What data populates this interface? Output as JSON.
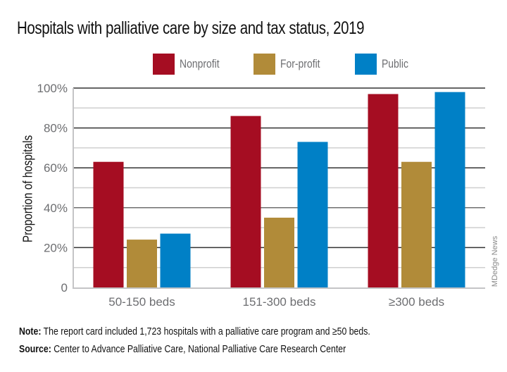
{
  "chart_data": {
    "type": "bar",
    "title": "Hospitals with palliative care by size and tax status, 2019",
    "xlabel": "",
    "ylabel": "Proportion of hospitals",
    "categories": [
      "50-150 beds",
      "151-300 beds",
      "≥300 beds"
    ],
    "series": [
      {
        "name": "Nonprofit",
        "color": "#a50d22",
        "values": [
          63,
          86,
          97
        ]
      },
      {
        "name": "For-profit",
        "color": "#b18b39",
        "values": [
          24,
          35,
          63
        ]
      },
      {
        "name": "Public",
        "color": "#0080c6",
        "values": [
          27,
          73,
          98
        ]
      }
    ],
    "ylim": [
      0,
      100
    ],
    "yticks": [
      0,
      20,
      40,
      60,
      80,
      100
    ],
    "ytick_labels": [
      "0",
      "20%",
      "40%",
      "60%",
      "80%",
      "100%"
    ],
    "minor_gridlines": [
      10,
      30,
      50,
      70,
      90
    ],
    "grid": true,
    "legend_position": "top-center"
  },
  "footer": {
    "note_label": "Note:",
    "note_text": " The report card included 1,723 hospitals with a palliative care program and ≥50 beds.",
    "source_label": "Source:",
    "source_text": " Center to Advance Palliative Care, National Palliative Care Research Center"
  },
  "credit": "MDedge News"
}
